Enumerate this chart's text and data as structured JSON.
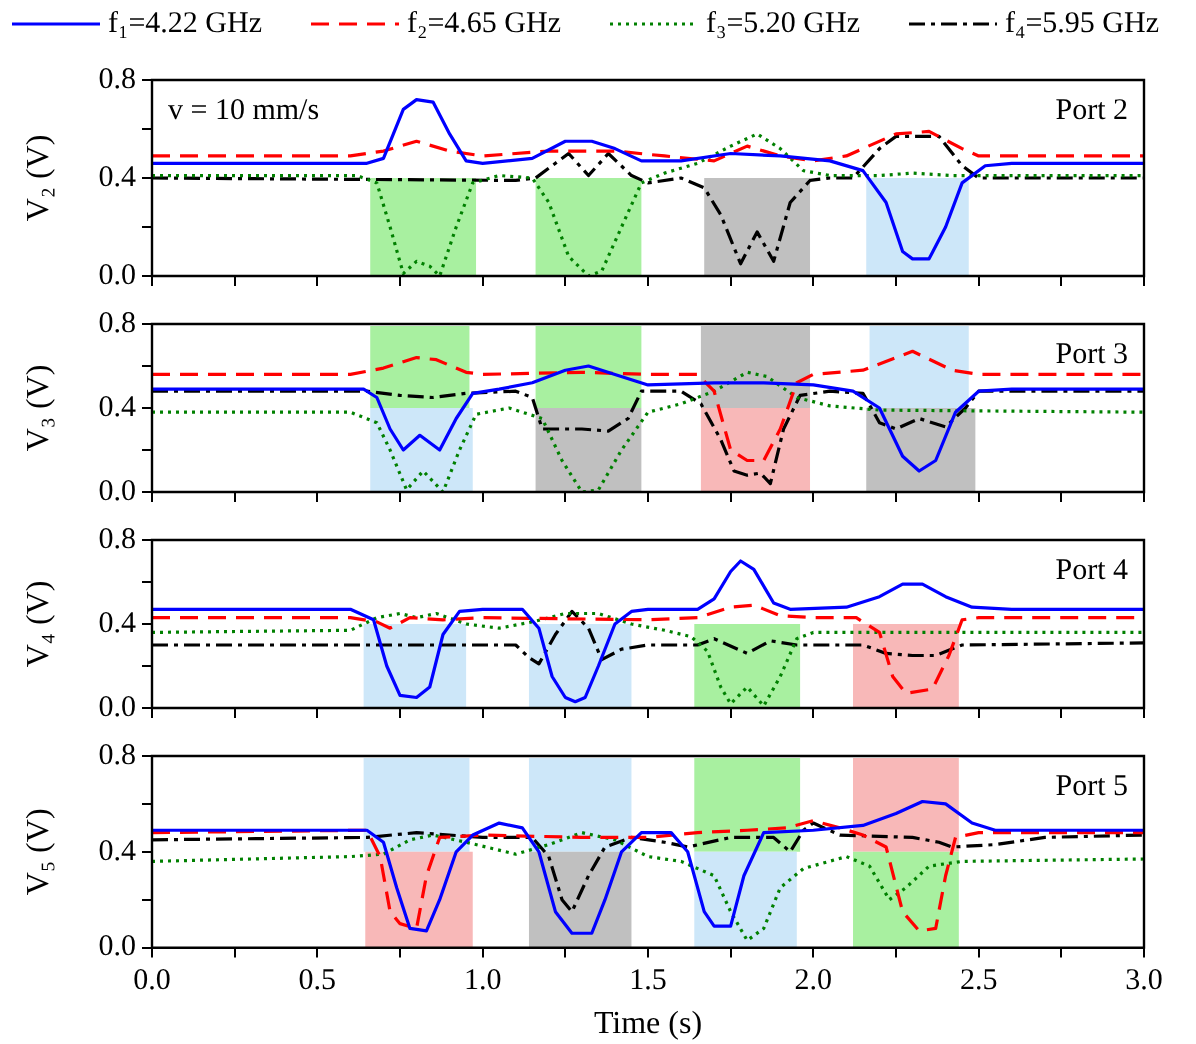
{
  "chart_data": [
    {
      "type": "line",
      "ylabel": "V₂ (V)",
      "legend": "top",
      "annotations": [
        "v = 10 mm/s",
        "Port 2"
      ],
      "xlim": [
        0,
        3
      ],
      "xticks": [
        {
          "value": 0,
          "label": null
        },
        {
          "value": 0.25,
          "label": null
        },
        {
          "value": 0.5,
          "label": null
        },
        {
          "value": 0.75,
          "label": null
        },
        {
          "value": 1,
          "label": null
        },
        {
          "value": 1.25,
          "label": null
        },
        {
          "value": 1.5,
          "label": null
        },
        {
          "value": 1.75,
          "label": null
        },
        {
          "value": 2,
          "label": null
        },
        {
          "value": 2.25,
          "label": null
        },
        {
          "value": 2.5,
          "label": null
        },
        {
          "value": 2.75,
          "label": null
        },
        {
          "value": 3,
          "label": null
        }
      ],
      "ylim": [
        0,
        0.8
      ],
      "yticks": [
        {
          "value": 0,
          "label": "0.0"
        },
        {
          "value": 0.2,
          "label": null
        },
        {
          "value": 0.4,
          "label": "0.4"
        },
        {
          "value": 0.6,
          "label": null
        },
        {
          "value": 0.8,
          "label": "0.8"
        }
      ],
      "tick_labels": "y",
      "marker": "none",
      "bands": [
        {
          "axis": "x",
          "from": 0.66,
          "to": 0.98,
          "color": "#a8f0a0"
        },
        {
          "axis": "x",
          "from": 1.16,
          "to": 1.48,
          "color": "#a8f0a0"
        },
        {
          "axis": "x",
          "from": 1.67,
          "to": 1.99,
          "color": "#c0c0c0"
        },
        {
          "axis": "x",
          "from": 2.16,
          "to": 2.47,
          "color": "#cde7f9"
        }
      ],
      "series": [
        {
          "name": "f₁=4.22 GHz",
          "color": "#0000ff",
          "line_style": "solid",
          "x": [
            0,
            0.65,
            0.7,
            0.76,
            0.8,
            0.85,
            0.9,
            0.95,
            1.0,
            1.15,
            1.25,
            1.33,
            1.4,
            1.48,
            1.6,
            1.75,
            1.9,
            2.05,
            2.15,
            2.22,
            2.27,
            2.3,
            2.35,
            2.4,
            2.45,
            2.52,
            2.6,
            3.0
          ],
          "values": [
            0.46,
            0.46,
            0.48,
            0.68,
            0.72,
            0.71,
            0.58,
            0.47,
            0.46,
            0.48,
            0.55,
            0.55,
            0.52,
            0.47,
            0.47,
            0.5,
            0.49,
            0.47,
            0.43,
            0.3,
            0.1,
            0.07,
            0.07,
            0.2,
            0.38,
            0.45,
            0.46,
            0.46
          ]
        },
        {
          "name": "f₂=4.65 GHz",
          "color": "#ff0000",
          "line_style": "dashed",
          "x": [
            0,
            0.6,
            0.7,
            0.8,
            0.9,
            1.0,
            1.2,
            1.4,
            1.55,
            1.7,
            1.8,
            1.9,
            2.0,
            2.1,
            2.25,
            2.35,
            2.45,
            2.5,
            3.0
          ],
          "values": [
            0.49,
            0.49,
            0.51,
            0.55,
            0.51,
            0.49,
            0.51,
            0.51,
            0.49,
            0.47,
            0.53,
            0.49,
            0.47,
            0.49,
            0.58,
            0.59,
            0.52,
            0.49,
            0.49
          ]
        },
        {
          "name": "f₃=5.20 GHz",
          "color": "#008000",
          "line_style": "dotted",
          "x": [
            0,
            0.62,
            0.68,
            0.72,
            0.76,
            0.8,
            0.84,
            0.87,
            0.92,
            0.97,
            1.05,
            1.15,
            1.2,
            1.26,
            1.32,
            1.36,
            1.42,
            1.48,
            1.55,
            1.65,
            1.75,
            1.83,
            1.9,
            1.97,
            2.05,
            2.2,
            2.3,
            2.42,
            3.0
          ],
          "values": [
            0.41,
            0.41,
            0.38,
            0.2,
            0.01,
            0.06,
            0.04,
            0.0,
            0.2,
            0.38,
            0.41,
            0.4,
            0.3,
            0.08,
            0.0,
            0.02,
            0.2,
            0.38,
            0.42,
            0.46,
            0.53,
            0.58,
            0.52,
            0.43,
            0.41,
            0.41,
            0.42,
            0.41,
            0.41
          ]
        },
        {
          "name": "f₄=5.95 GHz",
          "color": "#000000",
          "line_style": "dashdot",
          "x": [
            0,
            1.1,
            1.16,
            1.22,
            1.26,
            1.32,
            1.38,
            1.45,
            1.5,
            1.6,
            1.67,
            1.72,
            1.78,
            1.83,
            1.88,
            1.93,
            1.99,
            2.05,
            2.12,
            2.2,
            2.25,
            2.38,
            2.45,
            2.5,
            3.0
          ],
          "values": [
            0.4,
            0.39,
            0.4,
            0.46,
            0.5,
            0.41,
            0.5,
            0.41,
            0.38,
            0.4,
            0.36,
            0.25,
            0.05,
            0.18,
            0.06,
            0.3,
            0.39,
            0.4,
            0.4,
            0.52,
            0.57,
            0.57,
            0.45,
            0.4,
            0.4
          ]
        }
      ]
    },
    {
      "type": "line",
      "ylabel": "V₃ (V)",
      "annotations": [
        "Port 3"
      ],
      "xlim": [
        0,
        3
      ],
      "xticks": [
        {
          "value": 0,
          "label": null
        },
        {
          "value": 0.25,
          "label": null
        },
        {
          "value": 0.5,
          "label": null
        },
        {
          "value": 0.75,
          "label": null
        },
        {
          "value": 1,
          "label": null
        },
        {
          "value": 1.25,
          "label": null
        },
        {
          "value": 1.5,
          "label": null
        },
        {
          "value": 1.75,
          "label": null
        },
        {
          "value": 2,
          "label": null
        },
        {
          "value": 2.25,
          "label": null
        },
        {
          "value": 2.5,
          "label": null
        },
        {
          "value": 2.75,
          "label": null
        },
        {
          "value": 3,
          "label": null
        }
      ],
      "ylim": [
        0,
        0.8
      ],
      "yticks": [
        {
          "value": 0,
          "label": "0.0"
        },
        {
          "value": 0.2,
          "label": null
        },
        {
          "value": 0.4,
          "label": "0.4"
        },
        {
          "value": 0.6,
          "label": null
        },
        {
          "value": 0.8,
          "label": "0.8"
        }
      ],
      "tick_labels": "y",
      "marker": "none",
      "bands": [
        {
          "axis": "x",
          "from": 0.66,
          "to": 0.96,
          "color": "#a8f0a0"
        },
        {
          "axis": "x",
          "from": 1.16,
          "to": 1.48,
          "color": "#a8f0a0"
        },
        {
          "axis": "x",
          "from": 1.66,
          "to": 1.99,
          "color": "#c0c0c0"
        },
        {
          "axis": "x",
          "from": 2.17,
          "to": 2.47,
          "color": "#cde7f9"
        },
        {
          "axis": "x",
          "from": 0.66,
          "to": 0.97,
          "color": "#cde7f9"
        },
        {
          "axis": "x",
          "from": 1.16,
          "to": 1.48,
          "color": "#c0c0c0"
        },
        {
          "axis": "x",
          "from": 1.66,
          "to": 1.99,
          "color": "#f8b8b8"
        },
        {
          "axis": "x",
          "from": 2.16,
          "to": 2.49,
          "color": "#c0c0c0"
        }
      ],
      "series": [
        {
          "color": "#0000ff",
          "line_style": "solid",
          "x": [
            0,
            0.64,
            0.68,
            0.72,
            0.76,
            0.81,
            0.87,
            0.92,
            0.97,
            1.05,
            1.15,
            1.25,
            1.32,
            1.4,
            1.5,
            1.7,
            1.85,
            2.0,
            2.12,
            2.2,
            2.27,
            2.32,
            2.37,
            2.43,
            2.5,
            2.6,
            3.0
          ],
          "values": [
            0.49,
            0.49,
            0.45,
            0.3,
            0.2,
            0.27,
            0.2,
            0.35,
            0.47,
            0.49,
            0.52,
            0.58,
            0.6,
            0.56,
            0.51,
            0.52,
            0.52,
            0.51,
            0.48,
            0.4,
            0.17,
            0.1,
            0.15,
            0.38,
            0.48,
            0.49,
            0.49
          ]
        },
        {
          "color": "#ff0000",
          "line_style": "dashed",
          "x": [
            0,
            0.6,
            0.7,
            0.8,
            0.86,
            0.95,
            1.0,
            1.3,
            1.5,
            1.65,
            1.7,
            1.75,
            1.8,
            1.85,
            1.9,
            1.95,
            2.0,
            2.15,
            2.3,
            2.42,
            2.5,
            3.0
          ],
          "values": [
            0.56,
            0.56,
            0.59,
            0.64,
            0.63,
            0.57,
            0.56,
            0.57,
            0.56,
            0.56,
            0.48,
            0.2,
            0.15,
            0.15,
            0.3,
            0.52,
            0.56,
            0.58,
            0.67,
            0.58,
            0.56,
            0.56
          ]
        },
        {
          "color": "#008000",
          "line_style": "dotted",
          "x": [
            0,
            0.6,
            0.68,
            0.72,
            0.77,
            0.82,
            0.88,
            0.93,
            0.98,
            1.08,
            1.18,
            1.24,
            1.3,
            1.35,
            1.42,
            1.5,
            1.6,
            1.7,
            1.8,
            1.86,
            1.95,
            2.05,
            2.2,
            3.0
          ],
          "values": [
            0.38,
            0.38,
            0.33,
            0.2,
            0.01,
            0.1,
            0.0,
            0.2,
            0.37,
            0.4,
            0.35,
            0.15,
            0.0,
            0.01,
            0.2,
            0.38,
            0.42,
            0.48,
            0.57,
            0.55,
            0.45,
            0.41,
            0.39,
            0.38
          ]
        },
        {
          "color": "#000000",
          "line_style": "dashdot",
          "x": [
            0,
            0.65,
            0.75,
            0.85,
            0.95,
            1.1,
            1.15,
            1.18,
            1.3,
            1.38,
            1.44,
            1.48,
            1.6,
            1.66,
            1.72,
            1.76,
            1.8,
            1.84,
            1.87,
            1.91,
            1.96,
            2.05,
            2.15,
            2.2,
            2.25,
            2.32,
            2.4,
            2.46,
            2.5,
            3.0
          ],
          "values": [
            0.48,
            0.48,
            0.46,
            0.45,
            0.47,
            0.48,
            0.45,
            0.3,
            0.3,
            0.29,
            0.35,
            0.48,
            0.48,
            0.42,
            0.25,
            0.1,
            0.08,
            0.09,
            0.04,
            0.3,
            0.46,
            0.48,
            0.47,
            0.33,
            0.3,
            0.35,
            0.31,
            0.4,
            0.48,
            0.48
          ]
        }
      ]
    },
    {
      "type": "line",
      "ylabel": "V₄ (V)",
      "annotations": [
        "Port 4"
      ],
      "xlim": [
        0,
        3
      ],
      "xticks": [
        {
          "value": 0,
          "label": null
        },
        {
          "value": 0.25,
          "label": null
        },
        {
          "value": 0.5,
          "label": null
        },
        {
          "value": 0.75,
          "label": null
        },
        {
          "value": 1,
          "label": null
        },
        {
          "value": 1.25,
          "label": null
        },
        {
          "value": 1.5,
          "label": null
        },
        {
          "value": 1.75,
          "label": null
        },
        {
          "value": 2,
          "label": null
        },
        {
          "value": 2.25,
          "label": null
        },
        {
          "value": 2.5,
          "label": null
        },
        {
          "value": 2.75,
          "label": null
        },
        {
          "value": 3,
          "label": null
        }
      ],
      "ylim": [
        0,
        0.8
      ],
      "yticks": [
        {
          "value": 0,
          "label": "0.0"
        },
        {
          "value": 0.2,
          "label": null
        },
        {
          "value": 0.4,
          "label": "0.4"
        },
        {
          "value": 0.6,
          "label": null
        },
        {
          "value": 0.8,
          "label": "0.8"
        }
      ],
      "tick_labels": "y",
      "marker": "none",
      "bands": [
        {
          "axis": "x",
          "from": 0.64,
          "to": 0.95,
          "color": "#cde7f9"
        },
        {
          "axis": "x",
          "from": 1.14,
          "to": 1.45,
          "color": "#cde7f9"
        },
        {
          "axis": "x",
          "from": 1.64,
          "to": 1.96,
          "color": "#a8f0a0"
        },
        {
          "axis": "x",
          "from": 2.12,
          "to": 2.44,
          "color": "#f8b8b8"
        }
      ],
      "series": [
        {
          "color": "#0000ff",
          "line_style": "solid",
          "x": [
            0,
            0.6,
            0.67,
            0.71,
            0.75,
            0.8,
            0.84,
            0.88,
            0.93,
            1.0,
            1.12,
            1.17,
            1.21,
            1.25,
            1.28,
            1.31,
            1.35,
            1.4,
            1.45,
            1.5,
            1.65,
            1.7,
            1.75,
            1.78,
            1.82,
            1.88,
            1.93,
            2.1,
            2.2,
            2.27,
            2.33,
            2.4,
            2.48,
            2.6,
            3.0
          ],
          "values": [
            0.47,
            0.47,
            0.42,
            0.2,
            0.06,
            0.05,
            0.1,
            0.35,
            0.46,
            0.47,
            0.47,
            0.38,
            0.15,
            0.05,
            0.03,
            0.05,
            0.2,
            0.4,
            0.46,
            0.47,
            0.47,
            0.52,
            0.65,
            0.7,
            0.66,
            0.5,
            0.47,
            0.48,
            0.53,
            0.59,
            0.59,
            0.53,
            0.48,
            0.47,
            0.47
          ]
        },
        {
          "color": "#ff0000",
          "line_style": "dashed",
          "x": [
            0,
            0.6,
            0.68,
            0.72,
            0.78,
            0.88,
            1.0,
            1.5,
            1.65,
            1.75,
            1.82,
            1.9,
            2.0,
            2.13,
            2.2,
            2.24,
            2.28,
            2.36,
            2.41,
            2.45,
            2.5,
            3.0
          ],
          "values": [
            0.43,
            0.43,
            0.41,
            0.38,
            0.43,
            0.42,
            0.43,
            0.42,
            0.43,
            0.48,
            0.49,
            0.44,
            0.43,
            0.43,
            0.36,
            0.15,
            0.07,
            0.09,
            0.25,
            0.42,
            0.43,
            0.43
          ]
        },
        {
          "color": "#008000",
          "line_style": "dotted",
          "x": [
            0,
            0.6,
            0.68,
            0.75,
            0.8,
            0.86,
            0.95,
            1.05,
            1.15,
            1.25,
            1.35,
            1.45,
            1.55,
            1.63,
            1.68,
            1.72,
            1.75,
            1.8,
            1.85,
            1.9,
            1.95,
            2.0,
            3.0
          ],
          "values": [
            0.36,
            0.37,
            0.43,
            0.45,
            0.43,
            0.45,
            0.4,
            0.38,
            0.41,
            0.45,
            0.45,
            0.4,
            0.37,
            0.34,
            0.27,
            0.1,
            0.02,
            0.1,
            0.01,
            0.15,
            0.33,
            0.36,
            0.36
          ]
        },
        {
          "color": "#000000",
          "line_style": "dashdot",
          "x": [
            0,
            1.1,
            1.14,
            1.17,
            1.22,
            1.27,
            1.32,
            1.36,
            1.42,
            1.5,
            1.65,
            1.7,
            1.8,
            1.87,
            1.95,
            2.15,
            2.22,
            2.3,
            2.37,
            2.45,
            3.0
          ],
          "values": [
            0.3,
            0.3,
            0.24,
            0.21,
            0.35,
            0.46,
            0.38,
            0.23,
            0.28,
            0.3,
            0.3,
            0.33,
            0.26,
            0.32,
            0.3,
            0.3,
            0.26,
            0.25,
            0.25,
            0.3,
            0.31
          ]
        }
      ]
    },
    {
      "type": "line",
      "ylabel": "V₅ (V)",
      "xlabel": "Time (s)",
      "annotations": [
        "Port 5"
      ],
      "xlim": [
        0,
        3
      ],
      "xticks": [
        {
          "value": 0,
          "label": "0.0"
        },
        {
          "value": 0.25,
          "label": null
        },
        {
          "value": 0.5,
          "label": "0.5"
        },
        {
          "value": 0.75,
          "label": null
        },
        {
          "value": 1,
          "label": "1.0"
        },
        {
          "value": 1.25,
          "label": null
        },
        {
          "value": 1.5,
          "label": "1.5"
        },
        {
          "value": 1.75,
          "label": null
        },
        {
          "value": 2,
          "label": "2.0"
        },
        {
          "value": 2.25,
          "label": null
        },
        {
          "value": 2.5,
          "label": "2.5"
        },
        {
          "value": 2.75,
          "label": null
        },
        {
          "value": 3,
          "label": "3.0"
        }
      ],
      "ylim": [
        0,
        0.8
      ],
      "yticks": [
        {
          "value": 0,
          "label": "0.0"
        },
        {
          "value": 0.2,
          "label": null
        },
        {
          "value": 0.4,
          "label": "0.4"
        },
        {
          "value": 0.6,
          "label": null
        },
        {
          "value": 0.8,
          "label": "0.8"
        }
      ],
      "marker": "none",
      "bands": [
        {
          "axis": "x",
          "from": 0.64,
          "to": 0.96,
          "color": "#cde7f9"
        },
        {
          "axis": "x",
          "from": 1.14,
          "to": 1.45,
          "color": "#cde7f9"
        },
        {
          "axis": "x",
          "from": 1.64,
          "to": 1.96,
          "color": "#a8f0a0"
        },
        {
          "axis": "x",
          "from": 2.12,
          "to": 2.44,
          "color": "#f8b8b8"
        },
        {
          "axis": "x",
          "from": 0.645,
          "to": 0.97,
          "color": "#f8b8b8"
        },
        {
          "axis": "x",
          "from": 1.14,
          "to": 1.45,
          "color": "#c0c0c0"
        },
        {
          "axis": "x",
          "from": 1.64,
          "to": 1.95,
          "color": "#cde7f9"
        },
        {
          "axis": "x",
          "from": 2.12,
          "to": 2.44,
          "color": "#a8f0a0"
        }
      ],
      "series": [
        {
          "color": "#0000ff",
          "line_style": "solid",
          "x": [
            0,
            0.65,
            0.7,
            0.74,
            0.78,
            0.83,
            0.87,
            0.92,
            0.97,
            1.05,
            1.12,
            1.17,
            1.22,
            1.27,
            1.33,
            1.37,
            1.42,
            1.48,
            1.57,
            1.62,
            1.67,
            1.7,
            1.75,
            1.79,
            1.85,
            2.0,
            2.15,
            2.25,
            2.33,
            2.4,
            2.48,
            2.55,
            3.0
          ],
          "values": [
            0.49,
            0.49,
            0.44,
            0.25,
            0.08,
            0.07,
            0.2,
            0.4,
            0.47,
            0.52,
            0.5,
            0.4,
            0.15,
            0.06,
            0.06,
            0.2,
            0.4,
            0.48,
            0.48,
            0.4,
            0.15,
            0.09,
            0.09,
            0.3,
            0.48,
            0.49,
            0.51,
            0.56,
            0.61,
            0.6,
            0.52,
            0.49,
            0.49
          ]
        },
        {
          "color": "#ff0000",
          "line_style": "dashed",
          "x": [
            0,
            0.65,
            0.69,
            0.72,
            0.75,
            0.8,
            0.83,
            0.87,
            1.0,
            1.3,
            1.5,
            1.65,
            1.8,
            1.92,
            2.0,
            2.08,
            2.15,
            2.22,
            2.27,
            2.32,
            2.37,
            2.4,
            2.43,
            2.5,
            3.0
          ],
          "values": [
            0.48,
            0.49,
            0.38,
            0.15,
            0.1,
            0.08,
            0.3,
            0.46,
            0.47,
            0.46,
            0.46,
            0.48,
            0.49,
            0.5,
            0.53,
            0.5,
            0.47,
            0.42,
            0.15,
            0.07,
            0.08,
            0.3,
            0.46,
            0.48,
            0.48
          ]
        },
        {
          "color": "#008000",
          "line_style": "dotted",
          "x": [
            0,
            0.6,
            0.7,
            0.78,
            0.85,
            0.95,
            1.1,
            1.2,
            1.3,
            1.4,
            1.5,
            1.6,
            1.7,
            1.75,
            1.8,
            1.85,
            1.9,
            1.97,
            2.1,
            2.17,
            2.23,
            2.28,
            2.35,
            2.45,
            3.0
          ],
          "values": [
            0.36,
            0.38,
            0.39,
            0.45,
            0.47,
            0.44,
            0.39,
            0.43,
            0.48,
            0.45,
            0.38,
            0.36,
            0.3,
            0.15,
            0.03,
            0.08,
            0.25,
            0.33,
            0.38,
            0.34,
            0.2,
            0.25,
            0.34,
            0.36,
            0.37
          ]
        },
        {
          "color": "#000000",
          "line_style": "dashdot",
          "x": [
            0,
            0.65,
            0.8,
            1.0,
            1.15,
            1.2,
            1.24,
            1.27,
            1.32,
            1.37,
            1.45,
            1.55,
            1.62,
            1.75,
            1.88,
            1.93,
            1.97,
            2.0,
            2.08,
            2.3,
            2.38,
            2.42,
            2.55,
            2.7,
            3.0
          ],
          "values": [
            0.45,
            0.46,
            0.48,
            0.46,
            0.46,
            0.38,
            0.2,
            0.15,
            0.3,
            0.42,
            0.46,
            0.44,
            0.42,
            0.46,
            0.46,
            0.4,
            0.49,
            0.52,
            0.47,
            0.46,
            0.44,
            0.42,
            0.43,
            0.46,
            0.47
          ]
        }
      ]
    }
  ]
}
